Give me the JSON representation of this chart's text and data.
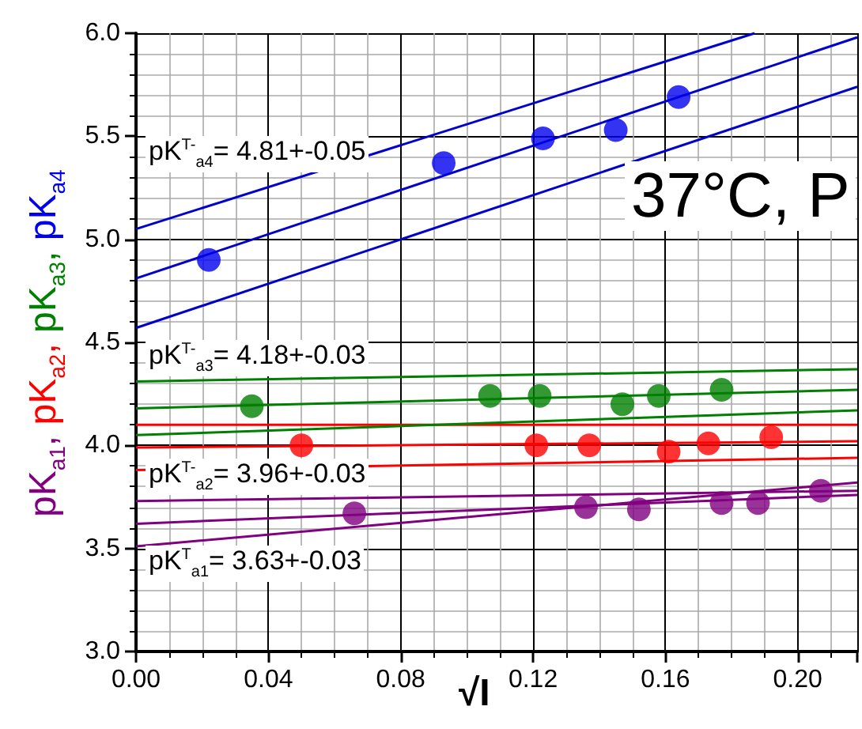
{
  "chart_data": {
    "type": "scatter",
    "xlabel": "√I",
    "ylabel": "pK$_{a1}$, pK$_{a2}$, pK$_{a3}$, pK$_{a4}$",
    "xlim": [
      0,
      0.218
    ],
    "ylim": [
      3.0,
      6.0
    ],
    "xticks": [
      {
        "value": 0,
        "label": "0.00"
      },
      {
        "value": 0.04,
        "label": "0.04"
      },
      {
        "value": 0.08,
        "label": "0.08"
      },
      {
        "value": 0.12,
        "label": "0.12"
      },
      {
        "value": 0.16,
        "label": "0.16"
      },
      {
        "value": 0.2,
        "label": "0.20"
      }
    ],
    "yticks": [
      {
        "value": 3,
        "label": "3.0"
      },
      {
        "value": 3.5,
        "label": "3.5"
      },
      {
        "value": 4,
        "label": "4.0"
      },
      {
        "value": 4.5,
        "label": "4.5"
      },
      {
        "value": 5,
        "label": "5.0"
      },
      {
        "value": 5.5,
        "label": "5.5"
      },
      {
        "value": 6,
        "label": "6.0"
      }
    ],
    "grid": true,
    "line_style": "solid",
    "series": [
      {
        "color": "#800080",
        "x": [
          0.066,
          0.136,
          0.152,
          0.177,
          0.188,
          0.207
        ],
        "values": [
          3.67,
          3.7,
          3.69,
          3.72,
          3.72,
          3.78
        ]
      },
      {
        "color": "#ff0000",
        "x": [
          0.05,
          0.121,
          0.137,
          0.161,
          0.173,
          0.192
        ],
        "values": [
          4.0,
          4.0,
          4.0,
          3.97,
          4.01,
          4.04
        ]
      },
      {
        "color": "#008000",
        "x": [
          0.035,
          0.107,
          0.122,
          0.147,
          0.158,
          0.177
        ],
        "values": [
          4.19,
          4.24,
          4.24,
          4.2,
          4.24,
          4.27
        ]
      },
      {
        "color": "#0000ee",
        "x": [
          0.022,
          0.093,
          0.123,
          0.145,
          0.164
        ],
        "values": [
          4.9,
          5.37,
          5.49,
          5.53,
          5.69
        ]
      },
      {
        "type": "line",
        "color": "#800080",
        "x": [
          0,
          0.218
        ],
        "values": [
          3.62,
          3.76
        ]
      },
      {
        "type": "line",
        "color": "#800080",
        "x": [
          0,
          0.218
        ],
        "values": [
          3.73,
          3.78
        ]
      },
      {
        "type": "line",
        "color": "#800080",
        "x": [
          0,
          0.218
        ],
        "values": [
          3.51,
          3.82
        ]
      },
      {
        "type": "line",
        "color": "#ff0000",
        "x": [
          0,
          0.218
        ],
        "values": [
          3.99,
          4.02
        ]
      },
      {
        "type": "line",
        "color": "#ff0000",
        "x": [
          0,
          0.218
        ],
        "values": [
          4.1,
          4.1
        ]
      },
      {
        "type": "line",
        "color": "#ff0000",
        "x": [
          0,
          0.218
        ],
        "values": [
          3.88,
          3.94
        ]
      },
      {
        "type": "line",
        "color": "#008000",
        "x": [
          0,
          0.218
        ],
        "values": [
          4.18,
          4.27
        ]
      },
      {
        "type": "line",
        "color": "#008000",
        "x": [
          0,
          0.218
        ],
        "values": [
          4.31,
          4.37
        ]
      },
      {
        "type": "line",
        "color": "#008000",
        "x": [
          0,
          0.218
        ],
        "values": [
          4.05,
          4.17
        ]
      },
      {
        "type": "line",
        "color": "#0000cc",
        "x": [
          0,
          0.218
        ],
        "values": [
          4.81,
          5.98
        ]
      },
      {
        "type": "line",
        "color": "#0000cc",
        "x": [
          0,
          0.187
        ],
        "values": [
          5.05,
          6.0
        ]
      },
      {
        "type": "line",
        "color": "#0000cc",
        "x": [
          0,
          0.218
        ],
        "values": [
          4.57,
          5.74
        ]
      }
    ],
    "annotations": [
      "pK$^{T-}$$_{a4}$= 4.81+-0.05",
      "pK$^{T-}$$_{a3}$= 4.18+-0.03",
      "pK$^{T-}$$_{a2}$= 3.96+-0.03",
      "pK$^{T}$$_{a1}$= 3.63+-0.03",
      "37°C, P"
    ]
  }
}
